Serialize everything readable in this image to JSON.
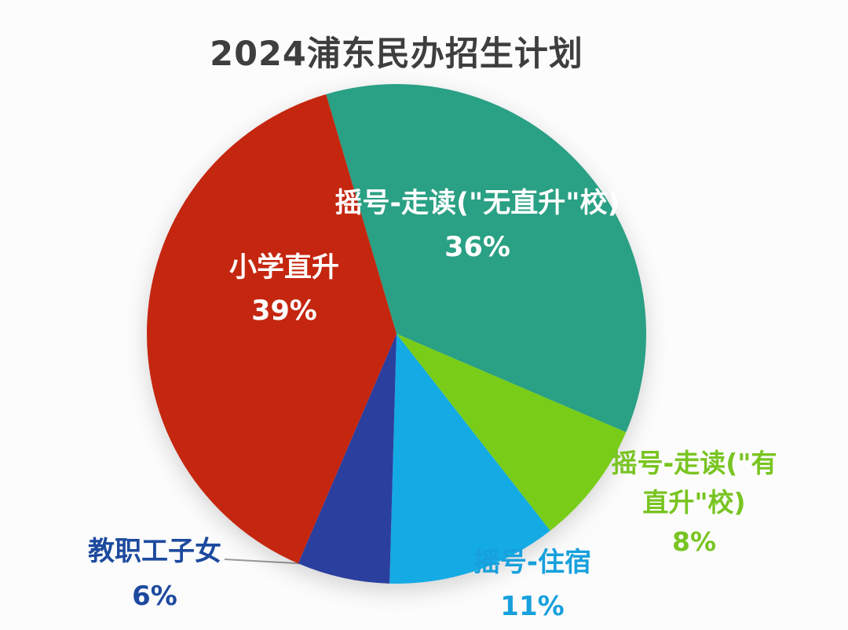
{
  "title": "2024浦东民办招生计划",
  "colors": {
    "background": "#fcfcfc",
    "title_text": "#3e3e3e",
    "leader_line": "#999999",
    "teal": "#2aa084",
    "bright_green": "#79cd18",
    "light_blue": "#14abe5",
    "dark_blue": "#2b3f9f",
    "red": "#c5260f"
  },
  "chart_data": {
    "type": "pie",
    "title": "2024浦东民办招生计划",
    "start_angle_deg": -16.4,
    "direction": "clockwise",
    "legend": "none",
    "slices": [
      {
        "id": "lottery-day-no-direct",
        "label": "摇号-走读(\"无直升\"校)",
        "value": 36,
        "color": "#2aa084",
        "label_color": "#ffffff",
        "label_position": "inside"
      },
      {
        "id": "lottery-day-with-direct",
        "label": "摇号-走读(\"有直升\"校)",
        "value": 8,
        "color": "#79cd18",
        "label_color": "#79c421",
        "label_position": "outside-right"
      },
      {
        "id": "lottery-boarding",
        "label": "摇号-住宿",
        "value": 11,
        "color": "#14abe5",
        "label_color": "#17a0dc",
        "label_position": "outside-bottom"
      },
      {
        "id": "staff-children",
        "label": "教职工子女",
        "value": 6,
        "color": "#2b3f9f",
        "label_color": "#1d4a9e",
        "label_position": "outside-left-with-leader"
      },
      {
        "id": "primary-direct",
        "label": "小学直升",
        "value": 39,
        "color": "#c5260f",
        "label_color": "#ffffff",
        "label_position": "inside"
      }
    ]
  },
  "labels": {
    "no_direct": {
      "line1": "摇号-走读(\"无直升\"校)",
      "line2": "36%"
    },
    "primary_direct": {
      "line1": "小学直升",
      "line2": "39%"
    },
    "with_direct": {
      "line1": "摇号-走读(\"有",
      "line2": "直升\"校)",
      "line3": "8%"
    },
    "staff": {
      "line1": "教职工子女",
      "line2": "6%"
    },
    "boarding": {
      "line1": "摇号-住宿",
      "line2": "11%"
    }
  }
}
